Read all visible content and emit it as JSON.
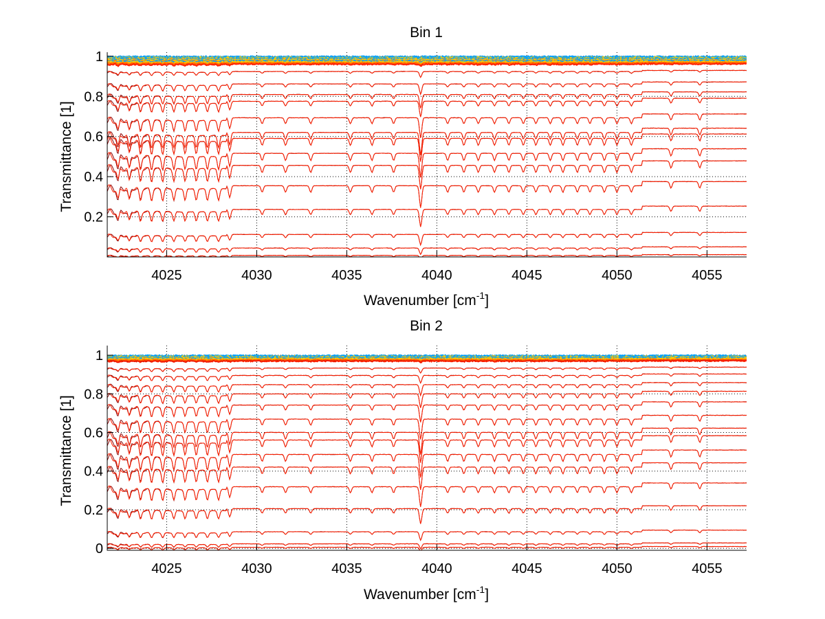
{
  "chart_data": [
    {
      "type": "line",
      "title": "Bin 1",
      "xlabel": "Wavenumber [cm",
      "xlabel_sup": "-1",
      "xlabel_tail": "]",
      "ylabel": "Transmittance [1]",
      "xlim": [
        4021.7,
        4057.2
      ],
      "ylim": [
        0.0,
        1.02
      ],
      "xticks": [
        4025,
        4030,
        4035,
        4040,
        4045,
        4050,
        4055
      ],
      "xtick_labels": [
        "4025",
        "4030",
        "4035",
        "4040",
        "4045",
        "4050",
        "4055"
      ],
      "yticks": [
        0.2,
        0.4,
        0.6,
        0.8,
        1.0
      ],
      "ytick_labels": [
        "0.2",
        "0.4",
        "0.6",
        "0.8",
        "1"
      ],
      "grid": true,
      "baselines": [
        0.998,
        0.993,
        0.985,
        0.975,
        0.92,
        0.855,
        0.8,
        0.765,
        0.68,
        0.605,
        0.575,
        0.5,
        0.44,
        0.34,
        0.225,
        0.105,
        0.04,
        0.005
      ],
      "colors": [
        "#00a0ff",
        "#ffd000",
        "#ff9000",
        "#ff6000",
        "#ff2000",
        "#d01010",
        "#8b0000"
      ]
    },
    {
      "type": "line",
      "title": "Bin 2",
      "xlabel": "Wavenumber [cm",
      "xlabel_sup": "-1",
      "xlabel_tail": "]",
      "ylabel": "Transmittance [1]",
      "xlim": [
        4021.7,
        4057.2
      ],
      "ylim": [
        -0.01,
        1.05
      ],
      "xticks": [
        4025,
        4030,
        4035,
        4040,
        4045,
        4050,
        4055
      ],
      "xtick_labels": [
        "4025",
        "4030",
        "4035",
        "4040",
        "4045",
        "4050",
        "4055"
      ],
      "yticks": [
        0,
        0.2,
        0.4,
        0.6,
        0.8,
        1.0
      ],
      "ytick_labels": [
        "0",
        "0.2",
        "0.4",
        "0.6",
        "0.8",
        "1"
      ],
      "grid": true,
      "baselines": [
        0.998,
        0.993,
        0.985,
        0.97,
        0.93,
        0.89,
        0.84,
        0.79,
        0.73,
        0.655,
        0.585,
        0.545,
        0.47,
        0.405,
        0.305,
        0.195,
        0.08,
        0.02,
        0.003
      ],
      "colors": [
        "#00a0ff",
        "#ffd000",
        "#ff9000",
        "#ff6000",
        "#ff2000",
        "#d01010",
        "#8b0000"
      ]
    }
  ]
}
